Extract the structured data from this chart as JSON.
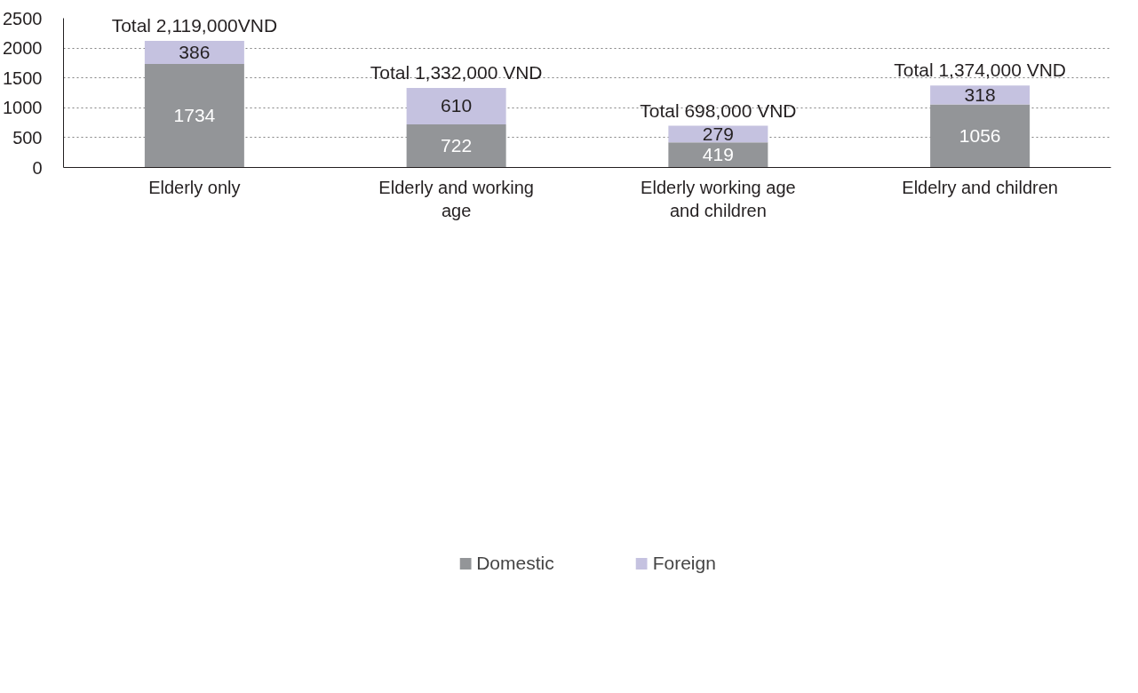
{
  "chart_data": {
    "type": "bar",
    "stacked": true,
    "categories": [
      "Elderly only",
      "Elderly and working\nage",
      "Elderly working age\nand children",
      "Eldelry and children"
    ],
    "series": [
      {
        "name": "Domestic",
        "color": "#939598",
        "values": [
          1734,
          722,
          419,
          1056
        ]
      },
      {
        "name": "Foreign",
        "color": "#c5c2e0",
        "values": [
          386,
          610,
          279,
          318
        ]
      }
    ],
    "totals": [
      "Total 2,119,000VND",
      "Total 1,332,000 VND",
      "Total 698,000 VND",
      "Total 1,374,000 VND"
    ],
    "data_labels": true,
    "ylim": [
      0,
      2500
    ],
    "yticks": [
      0,
      500,
      1000,
      1500,
      2000,
      2500
    ],
    "grid": "y",
    "legend": "bottom"
  }
}
